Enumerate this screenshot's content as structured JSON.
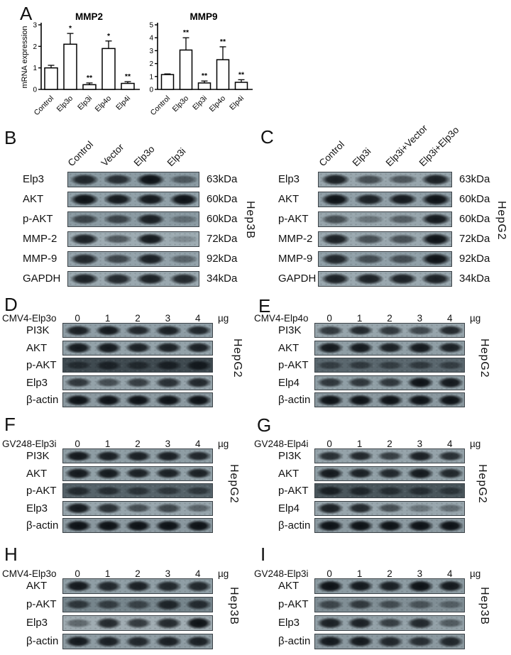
{
  "colors": {
    "band": "#0d1216",
    "strip_border": "#3b4247",
    "bar_fill": "#ffffff",
    "bar_stroke": "#000000"
  },
  "chart_panel": {
    "letter": "A",
    "ylabel": "mRNA expression"
  },
  "chart_data": [
    {
      "type": "bar",
      "title": "MMP2",
      "ylabel": "mRNA expression",
      "categories": [
        "Control",
        "Elp3o",
        "Elp3i",
        "Elp4o",
        "Elp4i"
      ],
      "values": [
        1.0,
        2.1,
        0.22,
        1.9,
        0.28
      ],
      "errors": [
        0.12,
        0.5,
        0.08,
        0.35,
        0.08
      ],
      "significance": [
        "",
        "*",
        "**",
        "*",
        "**"
      ],
      "ylim": [
        0,
        3
      ],
      "yticks": [
        0,
        1,
        2,
        3
      ],
      "grid": false,
      "legend": "none"
    },
    {
      "type": "bar",
      "title": "MMP9",
      "ylabel": "",
      "categories": [
        "Control",
        "Elp3o",
        "Elp3i",
        "Elp4o",
        "Elp4i"
      ],
      "values": [
        1.15,
        3.05,
        0.5,
        2.3,
        0.55
      ],
      "errors": [
        0.05,
        0.95,
        0.15,
        1.0,
        0.2
      ],
      "significance": [
        "",
        "**",
        "**",
        "**",
        "**"
      ],
      "ylim": [
        0,
        5
      ],
      "yticks": [
        0,
        1,
        2,
        3,
        4,
        5
      ],
      "grid": false,
      "legend": "none"
    }
  ],
  "lane_panels": [
    {
      "id": "B",
      "letter": "B",
      "cell_line": "Hep3B",
      "lanes": [
        "Control",
        "Vector",
        "Elp3o",
        "Elp3i"
      ],
      "rows": [
        {
          "protein": "Elp3",
          "kda": "63kDa",
          "bg": "#8a9aa2",
          "bands": [
            0.85,
            0.8,
            1.0,
            0.5
          ]
        },
        {
          "protein": "AKT",
          "kda": "60kDa",
          "bg": "#90a0a8",
          "bands": [
            1.0,
            0.95,
            0.95,
            1.0
          ]
        },
        {
          "protein": "p-AKT",
          "kda": "60kDa",
          "bg": "#8a9aa2",
          "bands": [
            0.65,
            0.65,
            0.9,
            0.35
          ]
        },
        {
          "protein": "MMP-2",
          "kda": "72kDa",
          "bg": "#9dabb2",
          "bands": [
            0.9,
            0.55,
            0.95,
            0.22
          ]
        },
        {
          "protein": "MMP-9",
          "kda": "92kDa",
          "bg": "#93a2aa",
          "bands": [
            0.85,
            0.65,
            0.9,
            0.45
          ]
        },
        {
          "protein": "GAPDH",
          "kda": "34kDa",
          "bg": "#9aa8af",
          "bands": [
            0.9,
            0.85,
            0.9,
            0.85
          ]
        }
      ]
    },
    {
      "id": "C",
      "letter": "C",
      "cell_line": "HepG2",
      "lanes": [
        "Control",
        "Elp3i",
        "Elp3i+Vector",
        "Elp3i+Elp3o"
      ],
      "rows": [
        {
          "protein": "Elp3",
          "kda": "63kDa",
          "bg": "#97a5ac",
          "bands": [
            0.9,
            0.6,
            0.55,
            0.9
          ]
        },
        {
          "protein": "AKT",
          "kda": "60kDa",
          "bg": "#8f9ea6",
          "bands": [
            1.0,
            0.9,
            0.95,
            1.0
          ]
        },
        {
          "protein": "p-AKT",
          "kda": "60kDa",
          "bg": "#97a5ac",
          "bands": [
            0.6,
            0.35,
            0.5,
            0.95
          ]
        },
        {
          "protein": "MMP-2",
          "kda": "72kDa",
          "bg": "#9aa8af",
          "bands": [
            0.9,
            0.6,
            0.6,
            1.0
          ]
        },
        {
          "protein": "MMP-9",
          "kda": "92kDa",
          "bg": "#90a0a8",
          "bands": [
            0.85,
            0.6,
            0.6,
            1.0
          ]
        },
        {
          "protein": "GAPDH",
          "kda": "34kDa",
          "bg": "#9aa8af",
          "bands": [
            0.9,
            0.9,
            0.9,
            0.9
          ]
        }
      ]
    }
  ],
  "dose_panels": [
    {
      "id": "D",
      "letter": "D",
      "construct": "CMV4-Elp3o",
      "doses": [
        "0",
        "1",
        "2",
        "3",
        "4"
      ],
      "unit": "µg",
      "cell_line": "HepG2",
      "rows": [
        {
          "protein": "PI3K",
          "bg": "#8e9da5",
          "bands": [
            0.9,
            0.95,
            0.85,
            0.9,
            0.85
          ]
        },
        {
          "protein": "AKT",
          "bg": "#93a2a9",
          "bands": [
            0.95,
            0.95,
            0.9,
            0.9,
            0.9
          ]
        },
        {
          "protein": "p-AKT",
          "bg": "#3f4a50",
          "bands": [
            0.55,
            0.7,
            0.6,
            0.75,
            0.85
          ]
        },
        {
          "protein": "Elp3",
          "bg": "#94a2a9",
          "bands": [
            0.75,
            0.6,
            0.7,
            0.8,
            0.85
          ]
        },
        {
          "protein": "β-actin",
          "bg": "#8b99a0",
          "bands": [
            1.0,
            1.0,
            1.0,
            1.0,
            1.0
          ]
        }
      ]
    },
    {
      "id": "E",
      "letter": "E",
      "construct": "CMV4-Elp4o",
      "doses": [
        "0",
        "1",
        "2",
        "3",
        "4"
      ],
      "unit": "µg",
      "cell_line": "HepG2",
      "rows": [
        {
          "protein": "PI3K",
          "bg": "#97a5ac",
          "bands": [
            0.75,
            0.85,
            0.75,
            0.65,
            0.85
          ]
        },
        {
          "protein": "AKT",
          "bg": "#8f9ea5",
          "bands": [
            0.95,
            0.95,
            0.9,
            0.95,
            0.9
          ]
        },
        {
          "protein": "p-AKT",
          "bg": "#5a676e",
          "bands": [
            0.5,
            0.55,
            0.5,
            0.55,
            0.5
          ]
        },
        {
          "protein": "Elp4",
          "bg": "#909fa6",
          "bands": [
            0.75,
            0.75,
            0.75,
            1.0,
            0.95
          ]
        },
        {
          "protein": "β-actin",
          "bg": "#8a989f",
          "bands": [
            1.0,
            1.0,
            1.0,
            1.0,
            1.0
          ]
        }
      ]
    },
    {
      "id": "F",
      "letter": "F",
      "construct": "GV248-Elp3i",
      "doses": [
        "0",
        "1",
        "2",
        "3",
        "4"
      ],
      "unit": "µg",
      "cell_line": "HepG2",
      "rows": [
        {
          "protein": "PI3K",
          "bg": "#8e9da4",
          "bands": [
            0.95,
            0.9,
            0.9,
            0.9,
            0.85
          ]
        },
        {
          "protein": "AKT",
          "bg": "#91a0a7",
          "bands": [
            0.95,
            0.95,
            0.9,
            0.9,
            0.9
          ]
        },
        {
          "protein": "p-AKT",
          "bg": "#56636a",
          "bands": [
            0.7,
            0.65,
            0.6,
            0.55,
            0.55
          ]
        },
        {
          "protein": "Elp3",
          "bg": "#97a5ac",
          "bands": [
            0.95,
            0.8,
            0.6,
            0.65,
            0.45
          ]
        },
        {
          "protein": "β-actin",
          "bg": "#8a989f",
          "bands": [
            1.0,
            1.0,
            1.0,
            1.0,
            1.0
          ]
        }
      ]
    },
    {
      "id": "G",
      "letter": "G",
      "construct": "GV248-Elp4i",
      "doses": [
        "0",
        "1",
        "2",
        "3",
        "4"
      ],
      "unit": "µg",
      "cell_line": "HepG2",
      "rows": [
        {
          "protein": "PI3K",
          "bg": "#95a3aa",
          "bands": [
            0.8,
            0.85,
            0.7,
            0.9,
            0.8
          ]
        },
        {
          "protein": "AKT",
          "bg": "#909fa6",
          "bands": [
            0.95,
            0.9,
            0.85,
            0.95,
            0.85
          ]
        },
        {
          "protein": "p-AKT",
          "bg": "#4a565c",
          "bands": [
            0.8,
            0.7,
            0.6,
            0.6,
            0.5
          ]
        },
        {
          "protein": "Elp4",
          "bg": "#98a6ad",
          "bands": [
            0.9,
            0.85,
            0.6,
            0.35,
            0.4
          ]
        },
        {
          "protein": "β-actin",
          "bg": "#8b99a0",
          "bands": [
            1.0,
            1.0,
            1.0,
            1.0,
            1.0
          ]
        }
      ]
    },
    {
      "id": "H",
      "letter": "H",
      "construct": "CMV4-Elp3o",
      "doses": [
        "0",
        "1",
        "2",
        "3",
        "4"
      ],
      "unit": "µg",
      "cell_line": "Hep3B",
      "rows": [
        {
          "protein": "AKT",
          "bg": "#8f9ea5",
          "bands": [
            0.95,
            0.85,
            0.9,
            0.85,
            0.85
          ]
        },
        {
          "protein": "p-AKT",
          "bg": "#76858c",
          "bands": [
            0.7,
            0.65,
            0.6,
            0.85,
            0.8
          ]
        },
        {
          "protein": "Elp3",
          "bg": "#a0acb2",
          "bands": [
            0.45,
            0.85,
            0.75,
            0.85,
            1.0
          ]
        },
        {
          "protein": "β-actin",
          "bg": "#8d9ba2",
          "bands": [
            0.95,
            0.9,
            0.85,
            0.9,
            0.9
          ]
        }
      ]
    },
    {
      "id": "I",
      "letter": "I",
      "construct": "GV248-Elp3i",
      "doses": [
        "0",
        "1",
        "2",
        "3",
        "4"
      ],
      "unit": "µg",
      "cell_line": "Hep3B",
      "rows": [
        {
          "protein": "AKT",
          "bg": "#8c9ba2",
          "bands": [
            1.0,
            0.95,
            0.9,
            1.0,
            0.95
          ]
        },
        {
          "protein": "p-AKT",
          "bg": "#808e95",
          "bands": [
            0.6,
            0.7,
            0.55,
            0.5,
            0.4
          ]
        },
        {
          "protein": "Elp3",
          "bg": "#93a1a8",
          "bands": [
            0.9,
            0.9,
            0.7,
            0.85,
            0.5
          ]
        },
        {
          "protein": "β-actin",
          "bg": "#8a989f",
          "bands": [
            0.95,
            0.95,
            0.85,
            0.8,
            0.85
          ]
        }
      ]
    }
  ]
}
